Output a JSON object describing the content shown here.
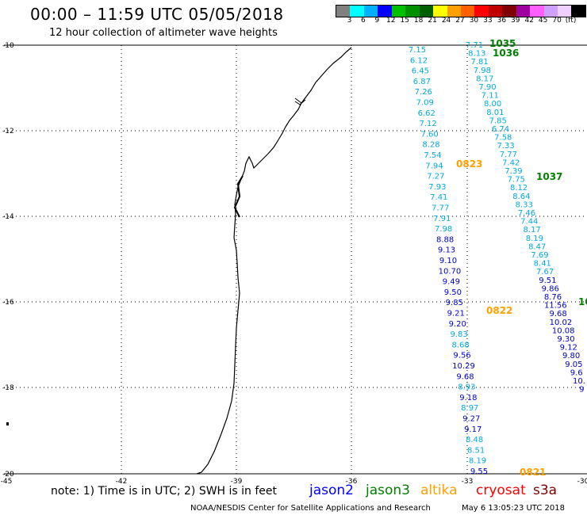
{
  "title": "00:00 – 11:59 UTC 05/05/2018",
  "subtitle": "12 hour collection of altimeter wave heights",
  "legend": {
    "colors": [
      "#808080",
      "#00ffff",
      "#00b0ff",
      "#0000ff",
      "#00c000",
      "#009000",
      "#006000",
      "#ffff00",
      "#ffa000",
      "#ff6000",
      "#ff0000",
      "#c00000",
      "#800000",
      "#a000a0",
      "#ff60ff",
      "#d0a0ff",
      "#f0d0ff",
      "#000000"
    ],
    "labels": [
      "3",
      "6",
      "9",
      "12",
      "15",
      "18",
      "21",
      "24",
      "27",
      "30",
      "33",
      "36",
      "39",
      "42",
      "45",
      "70",
      "(ft)"
    ]
  },
  "axes": {
    "y_labels": [
      "-10",
      "-12",
      "-14",
      "-16",
      "-18",
      "-20"
    ],
    "x_labels": [
      "-45",
      "-42",
      "-39",
      "-36",
      "-33",
      "-30"
    ]
  },
  "tracks": {
    "jason3_left": [
      "7.71",
      "8.13",
      "7.81",
      "7.98",
      "8.17",
      "7.90",
      "7.11",
      "8.00",
      "8.01",
      "7.85",
      "6.74",
      "7.58",
      "7.33",
      "7.77",
      "7.42",
      "7.39",
      "7.75",
      "8.12",
      "8.64",
      "8.33",
      "7.46",
      "7.44",
      "8.17",
      "8.19",
      "8.47",
      "7.69",
      "8.41",
      "7.67",
      "9.51",
      "9.86",
      "8.76",
      "11.56",
      "9.68",
      "10.02",
      "10.08",
      "9.30",
      "9.12",
      "9.80",
      "9.05",
      "9.6",
      "10.",
      "9"
    ],
    "jason2_left": [
      "7.15",
      "6.12",
      "6.45",
      "6.87",
      "7.26",
      "7.09",
      "6.62",
      "7.12",
      "7.60",
      "8.28",
      "7.54",
      "7.94",
      "7.27",
      "7.93",
      "7.41",
      "7.77",
      "7.91",
      "7.98",
      "8.88",
      "9.13",
      "9.10",
      "10.70",
      "9.49",
      "9.50",
      "9.85",
      "9.21",
      "9.20",
      "9.83",
      "8.68",
      "9.56",
      "10.29",
      "9.68",
      "8.93",
      "9.18",
      "8.97",
      "9.27",
      "9.17",
      "8.48",
      "8.51",
      "8.19",
      "9.55"
    ]
  },
  "time_labels": {
    "t1035": "1035",
    "t1036": "1036",
    "t1037": "1037",
    "t0823": "0823",
    "t0822": "0822",
    "t0821": "0821",
    "t10": "10"
  },
  "note": "note: 1) Time is in UTC; 2) SWH is in feet",
  "satellites": {
    "jason2": "jason2",
    "jason3": "jason3",
    "altika": "altika",
    "cryosat": "cryosat",
    "s3a": "s3a"
  },
  "footer": "NOAA/NESDIS Center for Satellite Applications and Research",
  "footer_date": "May  6 13:05:23 UTC 2018"
}
